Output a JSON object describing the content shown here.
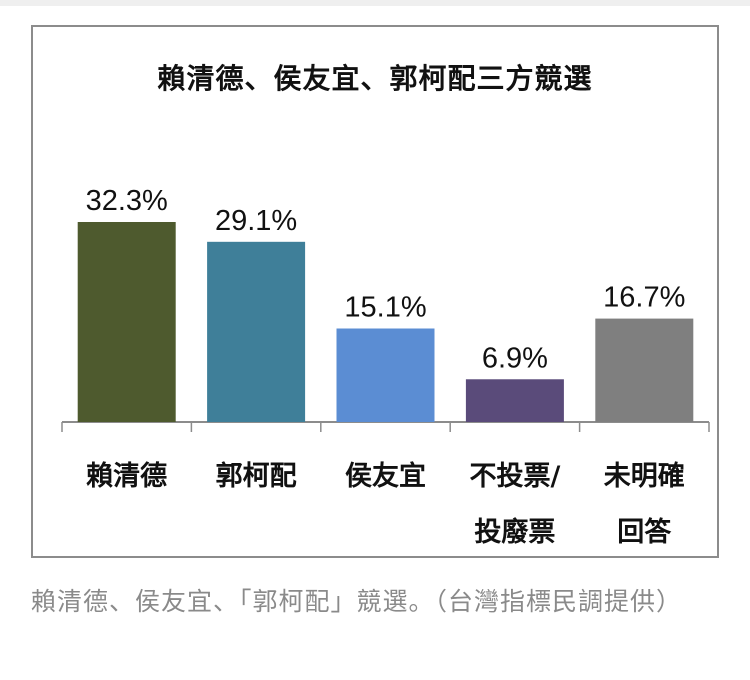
{
  "chart_data": {
    "type": "bar",
    "title": "賴清德、侯友宜、郭柯配三方競選",
    "categories": [
      [
        "賴清德"
      ],
      [
        "郭柯配"
      ],
      [
        "侯友宜"
      ],
      [
        "不投票/",
        "投廢票"
      ],
      [
        "未明確",
        "回答"
      ]
    ],
    "values": [
      32.3,
      29.1,
      15.1,
      6.9,
      16.7
    ],
    "value_labels": [
      "32.3%",
      "29.1%",
      "15.1%",
      "6.9%",
      "16.7%"
    ],
    "colors": [
      "#4e5a2e",
      "#3f7f99",
      "#5b8dd3",
      "#5a4b7a",
      "#7f7f7f"
    ],
    "ylim": [
      0,
      35
    ],
    "grid": false,
    "legend": "none"
  },
  "caption": "賴清德、侯友宜、「郭柯配」競選。（台灣指標民調提供）"
}
